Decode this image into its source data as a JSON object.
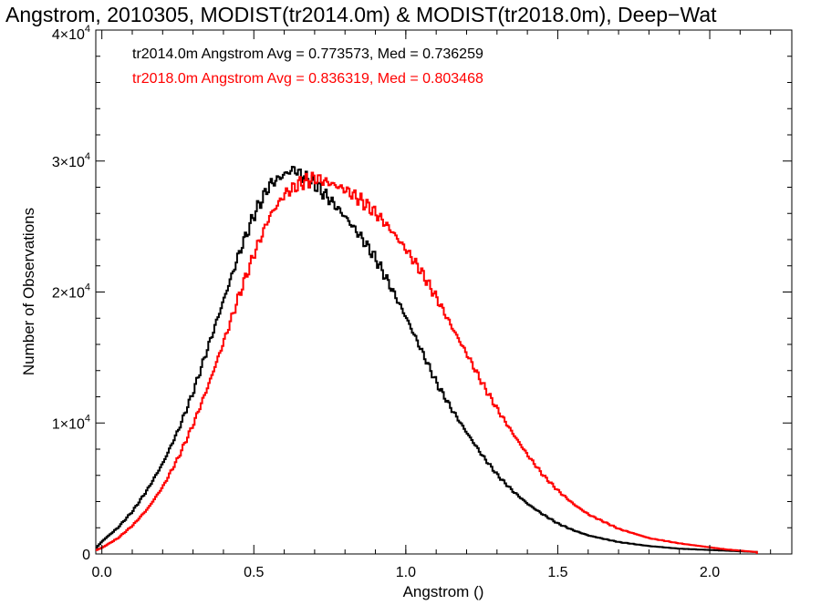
{
  "chart_data": {
    "type": "histogram-step",
    "title": "Angstrom, 2010305, MODIST(tr2014.0m) & MODIST(tr2018.0m), Deep−Wat",
    "xlabel": "Angstrom ()",
    "ylabel": "Number of Observations",
    "xlim": [
      -0.02,
      2.27
    ],
    "ylim": [
      0,
      40000
    ],
    "x_ticks": [
      {
        "value": 0.0,
        "label": "0.0"
      },
      {
        "value": 0.5,
        "label": "0.5"
      },
      {
        "value": 1.0,
        "label": "1.0"
      },
      {
        "value": 1.5,
        "label": "1.5"
      },
      {
        "value": 2.0,
        "label": "2.0"
      }
    ],
    "y_ticks": [
      {
        "value": 0,
        "mant": "0",
        "exp": ""
      },
      {
        "value": 10000,
        "mant": "1×10",
        "exp": "4"
      },
      {
        "value": 20000,
        "mant": "2×10",
        "exp": "4"
      },
      {
        "value": 30000,
        "mant": "3×10",
        "exp": "4"
      },
      {
        "value": 40000,
        "mant": "4×10",
        "exp": "4"
      }
    ],
    "annotations": [
      {
        "text": "tr2014.0m Angstrom Avg = 0.773573, Med = 0.736259",
        "color": "#000000"
      },
      {
        "text": "tr2018.0m Angstrom Avg = 0.836319, Med = 0.803468",
        "color": "#ff0000"
      }
    ],
    "series": [
      {
        "color": "#000000",
        "points": [
          [
            -0.02,
            500
          ],
          [
            0.0,
            1000
          ],
          [
            0.05,
            2000
          ],
          [
            0.1,
            3300
          ],
          [
            0.15,
            5000
          ],
          [
            0.2,
            7000
          ],
          [
            0.25,
            9500
          ],
          [
            0.3,
            12500
          ],
          [
            0.35,
            16000
          ],
          [
            0.4,
            19500
          ],
          [
            0.45,
            23000
          ],
          [
            0.5,
            26000
          ],
          [
            0.55,
            28200
          ],
          [
            0.6,
            29000
          ],
          [
            0.63,
            29400
          ],
          [
            0.65,
            29000
          ],
          [
            0.7,
            28200
          ],
          [
            0.75,
            27000
          ],
          [
            0.8,
            25700
          ],
          [
            0.85,
            24200
          ],
          [
            0.9,
            22500
          ],
          [
            0.95,
            20300
          ],
          [
            1.0,
            18000
          ],
          [
            1.05,
            15500
          ],
          [
            1.1,
            13000
          ],
          [
            1.15,
            11000
          ],
          [
            1.2,
            9200
          ],
          [
            1.25,
            7500
          ],
          [
            1.3,
            6000
          ],
          [
            1.35,
            4800
          ],
          [
            1.4,
            3800
          ],
          [
            1.45,
            3000
          ],
          [
            1.5,
            2300
          ],
          [
            1.55,
            1800
          ],
          [
            1.6,
            1400
          ],
          [
            1.7,
            900
          ],
          [
            1.8,
            600
          ],
          [
            1.9,
            400
          ],
          [
            2.0,
            300
          ],
          [
            2.05,
            250
          ],
          [
            2.1,
            200
          ],
          [
            2.15,
            150
          ],
          [
            2.155,
            0
          ]
        ]
      },
      {
        "color": "#ff0000",
        "points": [
          [
            -0.02,
            300
          ],
          [
            0.0,
            500
          ],
          [
            0.05,
            1200
          ],
          [
            0.1,
            2200
          ],
          [
            0.15,
            3500
          ],
          [
            0.2,
            5200
          ],
          [
            0.25,
            7400
          ],
          [
            0.3,
            10000
          ],
          [
            0.35,
            13000
          ],
          [
            0.4,
            16300
          ],
          [
            0.45,
            19800
          ],
          [
            0.5,
            23000
          ],
          [
            0.55,
            25800
          ],
          [
            0.6,
            27500
          ],
          [
            0.65,
            28300
          ],
          [
            0.7,
            28700
          ],
          [
            0.75,
            28300
          ],
          [
            0.8,
            27800
          ],
          [
            0.85,
            27000
          ],
          [
            0.9,
            26000
          ],
          [
            0.95,
            24700
          ],
          [
            1.0,
            23200
          ],
          [
            1.05,
            21500
          ],
          [
            1.1,
            19500
          ],
          [
            1.15,
            17300
          ],
          [
            1.2,
            15200
          ],
          [
            1.25,
            13000
          ],
          [
            1.3,
            11000
          ],
          [
            1.35,
            9200
          ],
          [
            1.4,
            7500
          ],
          [
            1.45,
            6000
          ],
          [
            1.5,
            4800
          ],
          [
            1.55,
            3800
          ],
          [
            1.6,
            3000
          ],
          [
            1.7,
            1900
          ],
          [
            1.8,
            1200
          ],
          [
            1.9,
            800
          ],
          [
            2.0,
            500
          ],
          [
            2.05,
            350
          ],
          [
            2.1,
            250
          ],
          [
            2.15,
            150
          ],
          [
            2.155,
            0
          ]
        ]
      }
    ]
  }
}
